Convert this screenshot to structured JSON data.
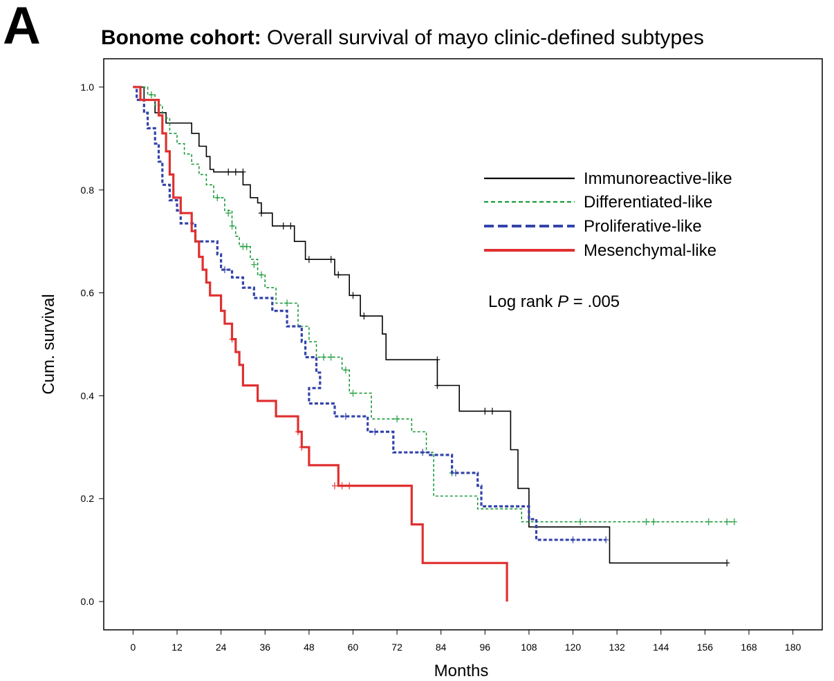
{
  "panel_label": "A",
  "title_bold": "Bonome cohort:",
  "title_rest": " Overall survival of mayo clinic-defined subtypes",
  "chart_data": {
    "type": "line",
    "title": "Bonome cohort: Overall survival of mayo clinic-defined subtypes",
    "xlabel": "Months",
    "ylabel": "Cum. survival",
    "xlim": [
      -8,
      188
    ],
    "ylim": [
      -0.055,
      1.055
    ],
    "xticks": [
      0,
      12,
      24,
      36,
      48,
      60,
      72,
      84,
      96,
      108,
      120,
      132,
      144,
      156,
      168,
      180
    ],
    "yticks": [
      0.0,
      0.2,
      0.4,
      0.6,
      0.8,
      1.0
    ],
    "ytick_labels": [
      "0.0",
      "0.2",
      "0.4",
      "0.6",
      "0.8",
      "1.0"
    ],
    "grid": false,
    "legend_position": "top-right",
    "annotation": {
      "prefix": "Log rank ",
      "italic": "P",
      "suffix": " = .005"
    },
    "series": [
      {
        "name": "Immunoreactive-like",
        "color": "#000000",
        "dash": "solid",
        "steps": [
          [
            0,
            1.0
          ],
          [
            3,
            0.975
          ],
          [
            6,
            0.95
          ],
          [
            9,
            0.93
          ],
          [
            16,
            0.91
          ],
          [
            18,
            0.885
          ],
          [
            20,
            0.865
          ],
          [
            21,
            0.84
          ],
          [
            22,
            0.835
          ],
          [
            26,
            0.835
          ],
          [
            30,
            0.81
          ],
          [
            32,
            0.785
          ],
          [
            34,
            0.775
          ],
          [
            35,
            0.755
          ],
          [
            38,
            0.73
          ],
          [
            44,
            0.7
          ],
          [
            47,
            0.665
          ],
          [
            55,
            0.635
          ],
          [
            59,
            0.595
          ],
          [
            62,
            0.555
          ],
          [
            68,
            0.52
          ],
          [
            69,
            0.47
          ],
          [
            83,
            0.42
          ],
          [
            89,
            0.37
          ],
          [
            103,
            0.295
          ],
          [
            105,
            0.22
          ],
          [
            108,
            0.145
          ],
          [
            130,
            0.075
          ],
          [
            162,
            0.075
          ]
        ],
        "censors": [
          [
            26,
            0.835
          ],
          [
            28,
            0.835
          ],
          [
            30,
            0.835
          ],
          [
            35,
            0.755
          ],
          [
            41,
            0.73
          ],
          [
            43,
            0.73
          ],
          [
            48,
            0.665
          ],
          [
            54,
            0.665
          ],
          [
            56,
            0.635
          ],
          [
            60,
            0.595
          ],
          [
            63,
            0.555
          ],
          [
            83,
            0.47
          ],
          [
            83,
            0.42
          ],
          [
            96,
            0.37
          ],
          [
            98,
            0.37
          ],
          [
            162,
            0.075
          ]
        ]
      },
      {
        "name": "Differentiated-like",
        "color": "#1a9a3a",
        "dash": "4,3",
        "steps": [
          [
            0,
            1.0
          ],
          [
            4,
            0.985
          ],
          [
            6,
            0.965
          ],
          [
            8,
            0.94
          ],
          [
            10,
            0.91
          ],
          [
            12,
            0.89
          ],
          [
            14,
            0.87
          ],
          [
            16,
            0.85
          ],
          [
            18,
            0.83
          ],
          [
            20,
            0.81
          ],
          [
            22,
            0.785
          ],
          [
            25,
            0.76
          ],
          [
            27,
            0.73
          ],
          [
            28,
            0.71
          ],
          [
            29,
            0.69
          ],
          [
            32,
            0.665
          ],
          [
            34,
            0.635
          ],
          [
            36,
            0.61
          ],
          [
            39,
            0.58
          ],
          [
            45,
            0.535
          ],
          [
            48,
            0.505
          ],
          [
            50,
            0.475
          ],
          [
            57,
            0.45
          ],
          [
            59,
            0.405
          ],
          [
            65,
            0.355
          ],
          [
            76,
            0.33
          ],
          [
            80,
            0.29
          ],
          [
            82,
            0.255
          ],
          [
            82,
            0.205
          ],
          [
            94,
            0.18
          ],
          [
            106,
            0.155
          ],
          [
            164,
            0.155
          ]
        ],
        "censors": [
          [
            5,
            0.985
          ],
          [
            23,
            0.785
          ],
          [
            26,
            0.755
          ],
          [
            27,
            0.73
          ],
          [
            30,
            0.69
          ],
          [
            31,
            0.69
          ],
          [
            33,
            0.655
          ],
          [
            35,
            0.635
          ],
          [
            42,
            0.58
          ],
          [
            52,
            0.475
          ],
          [
            54,
            0.475
          ],
          [
            58,
            0.45
          ],
          [
            60,
            0.405
          ],
          [
            72,
            0.355
          ],
          [
            87,
            0.25
          ],
          [
            122,
            0.155
          ],
          [
            140,
            0.155
          ],
          [
            142,
            0.155
          ],
          [
            157,
            0.155
          ],
          [
            162,
            0.155
          ],
          [
            164,
            0.155
          ]
        ]
      },
      {
        "name": "Proliferative-like",
        "color": "#3344aa",
        "dash": "5,3",
        "steps": [
          [
            0,
            1.0
          ],
          [
            1,
            0.975
          ],
          [
            3,
            0.95
          ],
          [
            4,
            0.92
          ],
          [
            6,
            0.89
          ],
          [
            7,
            0.855
          ],
          [
            8,
            0.81
          ],
          [
            10,
            0.78
          ],
          [
            12,
            0.76
          ],
          [
            13,
            0.735
          ],
          [
            17,
            0.7
          ],
          [
            23,
            0.675
          ],
          [
            24,
            0.645
          ],
          [
            27,
            0.63
          ],
          [
            30,
            0.61
          ],
          [
            33,
            0.59
          ],
          [
            38,
            0.565
          ],
          [
            42,
            0.535
          ],
          [
            46,
            0.505
          ],
          [
            47,
            0.475
          ],
          [
            50,
            0.445
          ],
          [
            51,
            0.415
          ],
          [
            48,
            0.385
          ],
          [
            55,
            0.36
          ],
          [
            64,
            0.33
          ],
          [
            71,
            0.29
          ],
          [
            81,
            0.285
          ],
          [
            87,
            0.25
          ],
          [
            94,
            0.225
          ],
          [
            95,
            0.185
          ],
          [
            108,
            0.16
          ],
          [
            110,
            0.12
          ],
          [
            129,
            0.12
          ]
        ],
        "censors": [
          [
            25,
            0.645
          ],
          [
            58,
            0.36
          ],
          [
            66,
            0.33
          ],
          [
            79,
            0.29
          ],
          [
            88,
            0.25
          ],
          [
            120,
            0.12
          ],
          [
            129,
            0.12
          ]
        ]
      },
      {
        "name": "Mesenchymal-like",
        "color": "#e03030",
        "dash": "solid",
        "steps": [
          [
            0,
            1.0
          ],
          [
            2,
            0.975
          ],
          [
            7,
            0.945
          ],
          [
            8,
            0.91
          ],
          [
            9,
            0.875
          ],
          [
            10,
            0.83
          ],
          [
            11,
            0.785
          ],
          [
            13,
            0.755
          ],
          [
            16,
            0.72
          ],
          [
            17,
            0.7
          ],
          [
            18,
            0.67
          ],
          [
            19,
            0.645
          ],
          [
            20,
            0.62
          ],
          [
            21,
            0.595
          ],
          [
            24,
            0.565
          ],
          [
            25,
            0.54
          ],
          [
            27,
            0.51
          ],
          [
            28,
            0.485
          ],
          [
            29,
            0.46
          ],
          [
            30,
            0.42
          ],
          [
            34,
            0.39
          ],
          [
            39,
            0.36
          ],
          [
            45,
            0.33
          ],
          [
            46,
            0.3
          ],
          [
            48,
            0.265
          ],
          [
            56,
            0.225
          ],
          [
            76,
            0.15
          ],
          [
            79,
            0.075
          ],
          [
            102,
            0.075
          ],
          [
            102,
            0.0
          ]
        ],
        "censors": [
          [
            27,
            0.51
          ],
          [
            45,
            0.33
          ],
          [
            46,
            0.3
          ],
          [
            55,
            0.225
          ],
          [
            57,
            0.225
          ],
          [
            59,
            0.225
          ]
        ]
      }
    ]
  }
}
